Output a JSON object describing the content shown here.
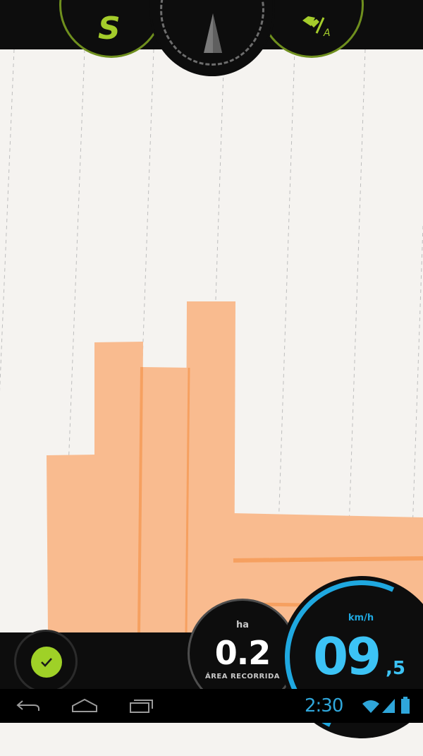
{
  "top_controls": {
    "s_button_label": "S",
    "flag_button_sub": "A"
  },
  "stats": {
    "area": {
      "unit": "ha",
      "value": "0.2",
      "label": "ÁREA RECORRIDA"
    },
    "speed": {
      "unit": "km/h",
      "value": "09",
      "decimal": ",5"
    }
  },
  "status_bar": {
    "time": "2:30"
  },
  "icons": {
    "compass": "compass-arrow-icon",
    "flag": "flag-icon",
    "check": "check-icon",
    "back": "back-icon",
    "home": "home-icon",
    "recents": "recents-icon",
    "wifi": "wifi-icon",
    "signal": "signal-icon",
    "battery": "battery-icon"
  },
  "colors": {
    "accent_green": "#a4cc2b",
    "accent_blue": "#3cc3f5",
    "coverage_fill": "#f9bb8f",
    "coverage_stroke": "#f6a060",
    "background": "#f5f3f0"
  }
}
